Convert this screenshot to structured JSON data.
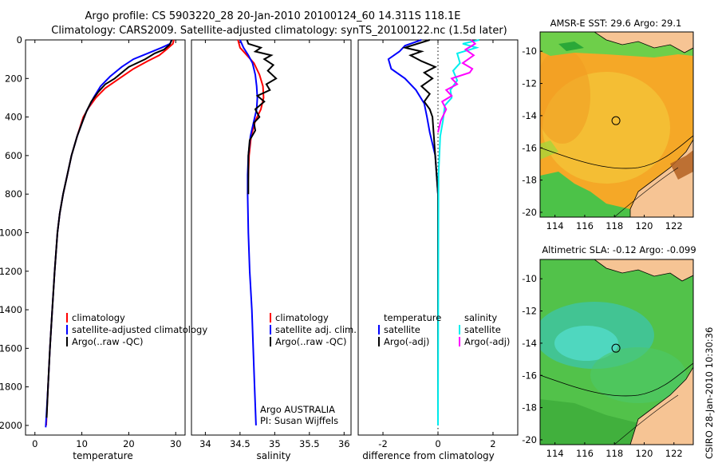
{
  "titles": {
    "line1": "Argo profile: CS 5903220_28 20-Jan-2010 20100124_60 14.311S 118.1E",
    "line2": "Climatology: CARS2009. Satellite-adjusted climatology: synTS_20100122.nc (1.5d later)"
  },
  "side_text": "CSIRO 28-Jan-2010 10:30:36",
  "colors": {
    "climatology": "#ff0000",
    "satellite": "#0000ff",
    "argo": "#000000",
    "sat_salinity": "#00eeee",
    "argo_salinity": "#ff00ff",
    "sst_orange": "#f6a623",
    "sla_green": "#4fc64f",
    "land": "#f6c494"
  },
  "chart_data": [
    {
      "type": "line",
      "id": "temperature",
      "xlabel": "temperature",
      "ylabel": "",
      "xlim": [
        -2,
        32
      ],
      "ylim": [
        2050,
        0
      ],
      "xticks": [
        0,
        10,
        20,
        30
      ],
      "yticks": [
        0,
        200,
        400,
        600,
        800,
        1000,
        1200,
        1400,
        1600,
        1800,
        2000
      ],
      "legend": [
        "climatology",
        "satellite-adjusted climatology",
        "Argo(..raw -QC)"
      ],
      "series": [
        {
          "name": "climatology",
          "color": "#ff0000",
          "points": [
            [
              29.6,
              0
            ],
            [
              29.4,
              20
            ],
            [
              28,
              50
            ],
            [
              26.5,
              80
            ],
            [
              24,
              110
            ],
            [
              21,
              150
            ],
            [
              18,
              200
            ],
            [
              15,
              250
            ],
            [
              13,
              300
            ],
            [
              11.5,
              350
            ],
            [
              10.3,
              400
            ],
            [
              9,
              500
            ],
            [
              7.8,
              600
            ],
            [
              6.9,
              700
            ],
            [
              6,
              800
            ],
            [
              5.3,
              900
            ],
            [
              4.8,
              1000
            ],
            [
              4.2,
              1200
            ],
            [
              3.7,
              1400
            ],
            [
              3.2,
              1600
            ],
            [
              2.8,
              1800
            ],
            [
              2.4,
              2000
            ]
          ]
        },
        {
          "name": "satellite-adjusted climatology",
          "color": "#0000ff",
          "points": [
            [
              29.1,
              0
            ],
            [
              28.8,
              20
            ],
            [
              27,
              40
            ],
            [
              24,
              70
            ],
            [
              21,
              100
            ],
            [
              18.5,
              140
            ],
            [
              16,
              190
            ],
            [
              14,
              240
            ],
            [
              12.5,
              300
            ],
            [
              11,
              370
            ],
            [
              10.2,
              420
            ],
            [
              9,
              500
            ],
            [
              7.8,
              600
            ],
            [
              6.9,
              700
            ],
            [
              6,
              800
            ],
            [
              5.3,
              900
            ],
            [
              4.8,
              1000
            ],
            [
              4.2,
              1200
            ],
            [
              3.7,
              1400
            ],
            [
              3.2,
              1600
            ],
            [
              2.8,
              1800
            ],
            [
              2.3,
              2010
            ]
          ]
        },
        {
          "name": "Argo(..raw -QC)",
          "color": "#000000",
          "points": [
            [
              29.2,
              0
            ],
            [
              28.7,
              25
            ],
            [
              27.5,
              50
            ],
            [
              25.5,
              70
            ],
            [
              23.5,
              100
            ],
            [
              20,
              140
            ],
            [
              17,
              200
            ],
            [
              15,
              230
            ],
            [
              13.5,
              270
            ],
            [
              12,
              320
            ],
            [
              11,
              370
            ],
            [
              10.2,
              420
            ],
            [
              9,
              500
            ],
            [
              7.8,
              600
            ],
            [
              6.9,
              700
            ],
            [
              6,
              800
            ],
            [
              5.3,
              900
            ],
            [
              4.8,
              1000
            ],
            [
              4.2,
              1200
            ],
            [
              3.7,
              1400
            ],
            [
              3.2,
              1600
            ],
            [
              2.8,
              1800
            ],
            [
              2.5,
              1960
            ]
          ]
        }
      ]
    },
    {
      "type": "line",
      "id": "salinity",
      "xlabel": "salinity",
      "xlim": [
        33.8,
        36.1
      ],
      "ylim": [
        2050,
        0
      ],
      "xticks": [
        34,
        34.5,
        35,
        35.5,
        36
      ],
      "xticklabels": [
        "34",
        "34.5",
        "35",
        "35.5",
        "36"
      ],
      "legend": [
        "climatology",
        "satellite adj. clim.",
        "Argo(..raw -QC)"
      ],
      "annotations": [
        "Argo AUSTRALIA",
        "PI: Susan Wijffels"
      ],
      "series": [
        {
          "name": "climatology",
          "color": "#ff0000",
          "points": [
            [
              34.47,
              0
            ],
            [
              34.5,
              40
            ],
            [
              34.6,
              80
            ],
            [
              34.7,
              120
            ],
            [
              34.78,
              180
            ],
            [
              34.83,
              240
            ],
            [
              34.84,
              300
            ],
            [
              34.8,
              360
            ],
            [
              34.72,
              420
            ],
            [
              34.66,
              500
            ],
            [
              34.63,
              600
            ],
            [
              34.62,
              700
            ],
            [
              34.61,
              800
            ]
          ]
        },
        {
          "name": "satellite adj. clim.",
          "color": "#0000ff",
          "points": [
            [
              34.5,
              0
            ],
            [
              34.55,
              40
            ],
            [
              34.62,
              80
            ],
            [
              34.68,
              120
            ],
            [
              34.72,
              180
            ],
            [
              34.74,
              240
            ],
            [
              34.75,
              300
            ],
            [
              34.74,
              360
            ],
            [
              34.7,
              420
            ],
            [
              34.65,
              500
            ],
            [
              34.62,
              600
            ],
            [
              34.61,
              700
            ],
            [
              34.61,
              800
            ],
            [
              34.62,
              1000
            ],
            [
              34.64,
              1200
            ],
            [
              34.67,
              1400
            ],
            [
              34.69,
              1600
            ],
            [
              34.71,
              1800
            ],
            [
              34.73,
              2000
            ]
          ]
        },
        {
          "name": "Argo(..raw -QC)",
          "color": "#000000",
          "points": [
            [
              34.6,
              0
            ],
            [
              34.62,
              20
            ],
            [
              34.8,
              40
            ],
            [
              34.72,
              60
            ],
            [
              34.95,
              80
            ],
            [
              34.85,
              100
            ],
            [
              34.98,
              130
            ],
            [
              34.9,
              160
            ],
            [
              35.02,
              200
            ],
            [
              34.88,
              230
            ],
            [
              34.93,
              260
            ],
            [
              34.75,
              290
            ],
            [
              34.85,
              320
            ],
            [
              34.72,
              360
            ],
            [
              34.78,
              400
            ],
            [
              34.7,
              430
            ],
            [
              34.72,
              470
            ],
            [
              34.64,
              520
            ],
            [
              34.62,
              600
            ],
            [
              34.62,
              800
            ]
          ]
        }
      ]
    },
    {
      "type": "line",
      "id": "difference",
      "xlabel": "difference from climatology",
      "xlim": [
        -2.9,
        2.9
      ],
      "ylim": [
        2050,
        0
      ],
      "xticks": [
        -2,
        0,
        2
      ],
      "legend_temperature": {
        "heading": "temperature",
        "items": [
          "satellite",
          "Argo(-adj)"
        ]
      },
      "legend_salinity": {
        "heading": "salinity",
        "items": [
          "satellite",
          "Argo(-adj)"
        ]
      },
      "series": [
        {
          "name": "temperature satellite",
          "color": "#0000ff",
          "points": [
            [
              -0.6,
              0
            ],
            [
              -1.2,
              30
            ],
            [
              -1.4,
              60
            ],
            [
              -1.8,
              100
            ],
            [
              -1.7,
              150
            ],
            [
              -1.2,
              200
            ],
            [
              -0.8,
              260
            ],
            [
              -0.5,
              330
            ],
            [
              -0.4,
              400
            ],
            [
              -0.3,
              480
            ],
            [
              -0.1,
              600
            ],
            [
              0,
              800
            ],
            [
              0,
              2000
            ]
          ]
        },
        {
          "name": "temperature Argo(-adj)",
          "color": "#000000",
          "points": [
            [
              -0.3,
              0
            ],
            [
              -1.2,
              40
            ],
            [
              -0.6,
              60
            ],
            [
              -1,
              80
            ],
            [
              -0.6,
              110
            ],
            [
              -0.1,
              140
            ],
            [
              -0.5,
              170
            ],
            [
              -0.2,
              200
            ],
            [
              -0.6,
              240
            ],
            [
              -0.3,
              280
            ],
            [
              -0.5,
              320
            ],
            [
              -0.3,
              360
            ],
            [
              -0.2,
              400
            ],
            [
              0,
              800
            ],
            [
              0,
              1950
            ]
          ]
        },
        {
          "name": "salinity satellite",
          "color": "#00eeee",
          "points": [
            [
              1.5,
              0
            ],
            [
              0.9,
              20
            ],
            [
              1.4,
              40
            ],
            [
              0.7,
              70
            ],
            [
              0.8,
              120
            ],
            [
              0.55,
              160
            ],
            [
              0.7,
              210
            ],
            [
              0.45,
              260
            ],
            [
              0.5,
              300
            ],
            [
              0.25,
              340
            ],
            [
              0.18,
              420
            ],
            [
              0.08,
              500
            ],
            [
              0.02,
              700
            ],
            [
              0,
              2000
            ]
          ]
        },
        {
          "name": "salinity Argo(-adj)",
          "color": "#ff00ff",
          "points": [
            [
              1.2,
              0
            ],
            [
              1.35,
              20
            ],
            [
              1,
              50
            ],
            [
              1.3,
              80
            ],
            [
              0.9,
              120
            ],
            [
              1.25,
              150
            ],
            [
              1.15,
              170
            ],
            [
              0.5,
              200
            ],
            [
              0.7,
              230
            ],
            [
              0.3,
              260
            ],
            [
              0.5,
              290
            ],
            [
              0.15,
              320
            ],
            [
              0.3,
              360
            ],
            [
              0.1,
              420
            ],
            [
              0,
              480
            ]
          ]
        }
      ]
    },
    {
      "type": "heatmap",
      "id": "sst-map",
      "title": "AMSR-E SST: 29.6 Argo: 29.1",
      "xlim": [
        113,
        123.3
      ],
      "ylim": [
        -20.3,
        -8.8
      ],
      "xticks": [
        114,
        116,
        118,
        120,
        122
      ],
      "yticks": [
        -10,
        -12,
        -14,
        -16,
        -18,
        -20
      ],
      "marker": {
        "lon": 118.1,
        "lat": -14.311
      }
    },
    {
      "type": "heatmap",
      "id": "sla-map",
      "title": "Altimetric SLA: -0.12 Argo: -0.099",
      "xlim": [
        113,
        123.3
      ],
      "ylim": [
        -20.3,
        -8.8
      ],
      "xticks": [
        114,
        116,
        118,
        120,
        122
      ],
      "yticks": [
        -10,
        -12,
        -14,
        -16,
        -18,
        -20
      ],
      "marker": {
        "lon": 118.1,
        "lat": -14.311
      }
    }
  ]
}
